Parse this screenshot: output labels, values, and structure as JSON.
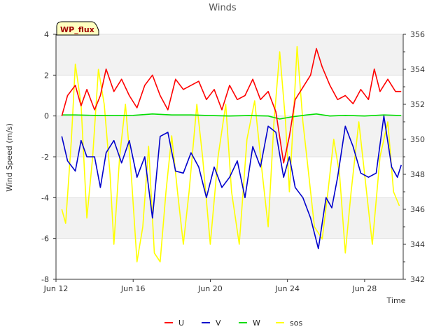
{
  "chart_data": {
    "type": "line",
    "title": "Winds",
    "badge": "WP_flux",
    "xlabel": "Time",
    "ylabel": "Wind Speed (m/s)",
    "x_range_days": [
      12,
      30
    ],
    "x_ticks": [
      {
        "day": 12,
        "label": "Jun 12"
      },
      {
        "day": 16,
        "label": "Jun 16"
      },
      {
        "day": 20,
        "label": "Jun 20"
      },
      {
        "day": 24,
        "label": "Jun 24"
      },
      {
        "day": 28,
        "label": "Jun 28"
      }
    ],
    "ylim": [
      -8,
      4
    ],
    "y_ticks": [
      -8,
      -6,
      -4,
      -2,
      0,
      2,
      4
    ],
    "y2lim": [
      342,
      356
    ],
    "y2_ticks": [
      342,
      344,
      346,
      348,
      350,
      352,
      354,
      356
    ],
    "series": [
      {
        "name": "U",
        "color": "#ff0000",
        "axis": "left",
        "points": [
          [
            12.3,
            0.0
          ],
          [
            12.6,
            1.0
          ],
          [
            13.0,
            1.5
          ],
          [
            13.3,
            0.5
          ],
          [
            13.6,
            1.3
          ],
          [
            14.0,
            0.3
          ],
          [
            14.3,
            1.0
          ],
          [
            14.6,
            2.3
          ],
          [
            15.0,
            1.2
          ],
          [
            15.4,
            1.8
          ],
          [
            15.8,
            1.0
          ],
          [
            16.2,
            0.4
          ],
          [
            16.6,
            1.5
          ],
          [
            17.0,
            2.0
          ],
          [
            17.4,
            1.0
          ],
          [
            17.8,
            0.3
          ],
          [
            18.2,
            1.8
          ],
          [
            18.6,
            1.3
          ],
          [
            19.0,
            1.5
          ],
          [
            19.4,
            1.7
          ],
          [
            19.8,
            0.8
          ],
          [
            20.2,
            1.3
          ],
          [
            20.6,
            0.3
          ],
          [
            21.0,
            1.5
          ],
          [
            21.4,
            0.8
          ],
          [
            21.8,
            1.0
          ],
          [
            22.2,
            1.8
          ],
          [
            22.6,
            0.8
          ],
          [
            23.0,
            1.2
          ],
          [
            23.4,
            0.2
          ],
          [
            23.8,
            -2.3
          ],
          [
            24.1,
            -1.0
          ],
          [
            24.4,
            0.8
          ],
          [
            24.8,
            1.4
          ],
          [
            25.2,
            2.0
          ],
          [
            25.5,
            3.3
          ],
          [
            25.8,
            2.4
          ],
          [
            26.2,
            1.5
          ],
          [
            26.6,
            0.8
          ],
          [
            27.0,
            1.0
          ],
          [
            27.4,
            0.6
          ],
          [
            27.8,
            1.3
          ],
          [
            28.2,
            0.8
          ],
          [
            28.5,
            2.3
          ],
          [
            28.8,
            1.2
          ],
          [
            29.2,
            1.8
          ],
          [
            29.6,
            1.2
          ],
          [
            29.9,
            1.2
          ]
        ]
      },
      {
        "name": "V",
        "color": "#0000cc",
        "axis": "left",
        "points": [
          [
            12.3,
            -1.0
          ],
          [
            12.6,
            -2.2
          ],
          [
            13.0,
            -2.7
          ],
          [
            13.3,
            -1.2
          ],
          [
            13.6,
            -2.0
          ],
          [
            14.0,
            -2.0
          ],
          [
            14.3,
            -3.5
          ],
          [
            14.6,
            -1.8
          ],
          [
            15.0,
            -1.2
          ],
          [
            15.4,
            -2.3
          ],
          [
            15.8,
            -1.2
          ],
          [
            16.2,
            -3.0
          ],
          [
            16.6,
            -2.0
          ],
          [
            17.0,
            -5.0
          ],
          [
            17.4,
            -1.0
          ],
          [
            17.8,
            -0.8
          ],
          [
            18.2,
            -2.7
          ],
          [
            18.6,
            -2.8
          ],
          [
            19.0,
            -1.8
          ],
          [
            19.4,
            -2.5
          ],
          [
            19.8,
            -4.0
          ],
          [
            20.2,
            -2.5
          ],
          [
            20.6,
            -3.5
          ],
          [
            21.0,
            -3.0
          ],
          [
            21.4,
            -2.2
          ],
          [
            21.8,
            -4.0
          ],
          [
            22.2,
            -1.5
          ],
          [
            22.6,
            -2.5
          ],
          [
            23.0,
            -0.5
          ],
          [
            23.4,
            -0.8
          ],
          [
            23.8,
            -3.0
          ],
          [
            24.1,
            -2.0
          ],
          [
            24.4,
            -3.5
          ],
          [
            24.8,
            -4.0
          ],
          [
            25.2,
            -5.0
          ],
          [
            25.6,
            -6.5
          ],
          [
            26.0,
            -4.0
          ],
          [
            26.3,
            -4.5
          ],
          [
            26.6,
            -3.0
          ],
          [
            27.0,
            -0.5
          ],
          [
            27.4,
            -1.5
          ],
          [
            27.8,
            -2.8
          ],
          [
            28.2,
            -3.0
          ],
          [
            28.6,
            -2.8
          ],
          [
            29.0,
            0.0
          ],
          [
            29.4,
            -2.5
          ],
          [
            29.7,
            -3.0
          ],
          [
            29.9,
            -2.4
          ]
        ]
      },
      {
        "name": "W",
        "color": "#00dd00",
        "axis": "left",
        "points": [
          [
            12.3,
            0.05
          ],
          [
            13.0,
            0.05
          ],
          [
            14.0,
            0.03
          ],
          [
            15.0,
            0.02
          ],
          [
            16.0,
            0.03
          ],
          [
            17.0,
            0.1
          ],
          [
            18.0,
            0.05
          ],
          [
            19.0,
            0.05
          ],
          [
            20.0,
            0.02
          ],
          [
            21.0,
            0.0
          ],
          [
            22.0,
            0.02
          ],
          [
            23.0,
            0.0
          ],
          [
            23.6,
            -0.15
          ],
          [
            24.2,
            -0.05
          ],
          [
            25.0,
            0.05
          ],
          [
            25.5,
            0.1
          ],
          [
            26.2,
            0.0
          ],
          [
            27.0,
            0.03
          ],
          [
            28.0,
            0.0
          ],
          [
            29.0,
            0.05
          ],
          [
            29.9,
            0.02
          ]
        ]
      },
      {
        "name": "sos",
        "color": "#ffff00",
        "axis": "right",
        "points": [
          [
            12.3,
            346.0
          ],
          [
            12.5,
            345.2
          ],
          [
            12.8,
            350.0
          ],
          [
            13.0,
            354.3
          ],
          [
            13.3,
            352.0
          ],
          [
            13.6,
            345.5
          ],
          [
            13.9,
            349.0
          ],
          [
            14.2,
            354.0
          ],
          [
            14.5,
            352.0
          ],
          [
            14.8,
            348.0
          ],
          [
            15.0,
            344.0
          ],
          [
            15.3,
            349.0
          ],
          [
            15.6,
            352.0
          ],
          [
            15.9,
            348.0
          ],
          [
            16.2,
            343.0
          ],
          [
            16.5,
            345.0
          ],
          [
            16.8,
            349.6
          ],
          [
            17.1,
            343.5
          ],
          [
            17.4,
            343.0
          ],
          [
            17.7,
            347.0
          ],
          [
            18.0,
            350.2
          ],
          [
            18.3,
            347.0
          ],
          [
            18.6,
            344.0
          ],
          [
            18.9,
            347.0
          ],
          [
            19.3,
            352.0
          ],
          [
            19.6,
            349.0
          ],
          [
            20.0,
            344.0
          ],
          [
            20.4,
            349.0
          ],
          [
            20.8,
            352.0
          ],
          [
            21.1,
            347.0
          ],
          [
            21.5,
            344.0
          ],
          [
            21.9,
            350.0
          ],
          [
            22.3,
            352.2
          ],
          [
            22.7,
            348.0
          ],
          [
            23.0,
            345.0
          ],
          [
            23.3,
            351.0
          ],
          [
            23.6,
            355.0
          ],
          [
            23.9,
            351.0
          ],
          [
            24.1,
            347.0
          ],
          [
            24.3,
            351.0
          ],
          [
            24.5,
            355.3
          ],
          [
            24.8,
            351.0
          ],
          [
            25.1,
            348.0
          ],
          [
            25.4,
            345.0
          ],
          [
            25.8,
            344.3
          ],
          [
            26.1,
            347.0
          ],
          [
            26.4,
            350.0
          ],
          [
            26.7,
            348.0
          ],
          [
            27.0,
            343.5
          ],
          [
            27.3,
            347.0
          ],
          [
            27.7,
            351.0
          ],
          [
            28.0,
            348.0
          ],
          [
            28.4,
            344.0
          ],
          [
            28.8,
            349.0
          ],
          [
            29.2,
            351.0
          ],
          [
            29.5,
            347.0
          ],
          [
            29.8,
            346.2
          ]
        ]
      }
    ],
    "legend": [
      "U",
      "V",
      "W",
      "sos"
    ],
    "legend_position": "bottom-center"
  }
}
